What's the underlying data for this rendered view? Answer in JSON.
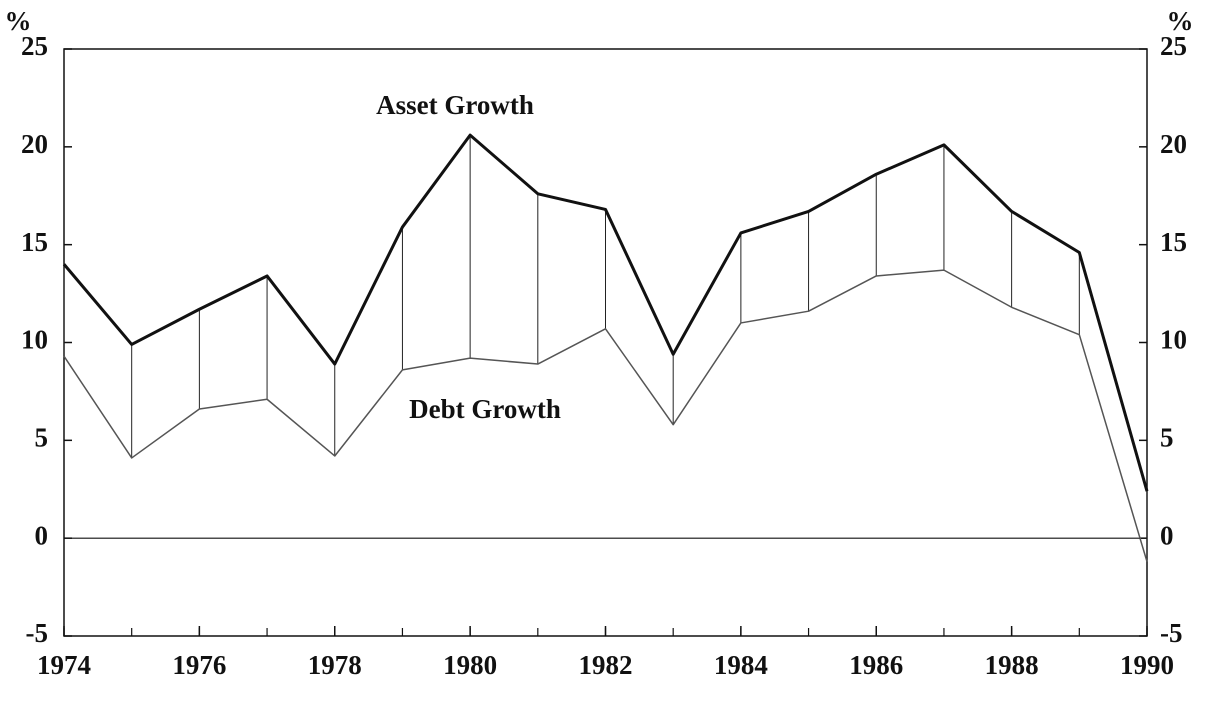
{
  "chart_data": {
    "type": "line",
    "y_label": "%",
    "y2_label": "%",
    "annotations": [
      "Asset Growth",
      "Debt Growth"
    ],
    "x": [
      1974,
      1975,
      1976,
      1977,
      1978,
      1979,
      1980,
      1981,
      1982,
      1983,
      1984,
      1985,
      1986,
      1987,
      1988,
      1989,
      1990
    ],
    "xlim": [
      1974,
      1990
    ],
    "xticks": [
      1974,
      1976,
      1978,
      1980,
      1982,
      1984,
      1986,
      1988,
      1990
    ],
    "ylim": [
      -5,
      25
    ],
    "yticks": [
      -5,
      0,
      5,
      10,
      15,
      20,
      25
    ],
    "y2lim": [
      -5,
      25
    ],
    "y2ticks": [
      -5,
      0,
      5,
      10,
      15,
      20,
      25
    ],
    "series": [
      {
        "name": "Asset Growth",
        "color": "#111111",
        "values": [
          14.0,
          9.9,
          11.7,
          13.4,
          8.9,
          15.9,
          20.6,
          17.6,
          16.8,
          9.4,
          15.6,
          16.7,
          18.6,
          20.1,
          16.7,
          14.6,
          2.4
        ]
      },
      {
        "name": "Debt Growth",
        "color": "#555555",
        "values": [
          9.3,
          4.1,
          6.6,
          7.1,
          4.2,
          8.6,
          9.2,
          8.9,
          10.7,
          5.8,
          11.0,
          11.6,
          13.4,
          13.7,
          11.8,
          10.4,
          -1.2
        ]
      }
    ]
  }
}
